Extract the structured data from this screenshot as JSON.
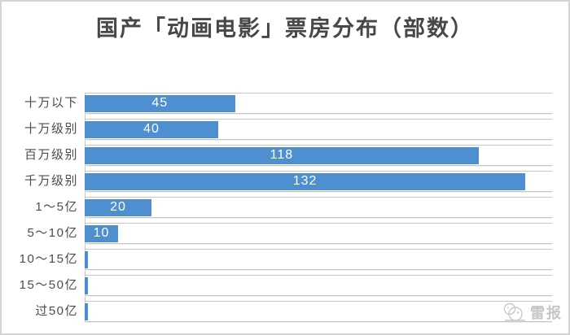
{
  "title": "国产「动画电影」票房分布（部数）",
  "watermark": {
    "label": "雷报"
  },
  "colors": {
    "bar": "#4e8fd0",
    "gridline": "#c7c7c7",
    "title_text": "#474747",
    "category_text": "#4c4c4c",
    "value_text": "#ffffff",
    "watermark_text": "#c6c6c6",
    "frame_border": "#d5d5d5",
    "background": "#ffffff"
  },
  "chart_data": {
    "type": "bar",
    "orientation": "horizontal",
    "title": "国产「动画电影」票房分布（部数）",
    "categories": [
      "十万以下",
      "十万级别",
      "百万级别",
      "千万级别",
      "1～5亿",
      "5～10亿",
      "10～15亿",
      "15～50亿",
      "过50亿"
    ],
    "values": [
      45,
      40,
      118,
      132,
      20,
      10,
      1,
      1,
      1
    ],
    "value_labels_visible": [
      true,
      true,
      true,
      true,
      true,
      true,
      false,
      false,
      false
    ],
    "xlim": [
      0,
      140
    ],
    "xlabel": "",
    "ylabel": "",
    "legend": "none",
    "grid": "category-row-borders"
  }
}
